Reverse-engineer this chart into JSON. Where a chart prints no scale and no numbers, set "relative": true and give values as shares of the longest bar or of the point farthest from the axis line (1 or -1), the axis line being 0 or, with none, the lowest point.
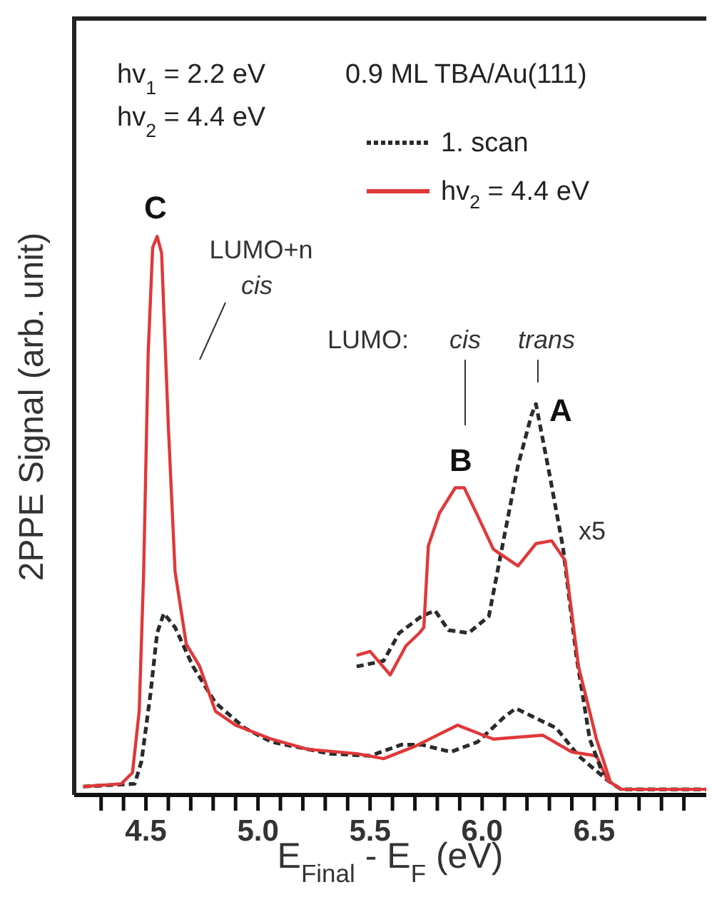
{
  "chart_data": {
    "type": "line",
    "relative": true,
    "xlabel": "E$_{Final}$ - E$_{F}$  (eV)",
    "ylabel": "2PPE Signal (arb. unit)",
    "xlim": [
      4.18,
      7.0
    ],
    "xticks": [
      {
        "value": 4.3,
        "label": null
      },
      {
        "value": 4.4,
        "label": null
      },
      4.5,
      {
        "value": 4.6,
        "label": null
      },
      {
        "value": 4.7,
        "label": null
      },
      {
        "value": 4.8,
        "label": null
      },
      {
        "value": 4.9,
        "label": null
      },
      {
        "value": 5.0,
        "label": "5.0"
      },
      {
        "value": 5.1,
        "label": null
      },
      {
        "value": 5.2,
        "label": null
      },
      {
        "value": 5.3,
        "label": null
      },
      {
        "value": 5.4,
        "label": null
      },
      5.5,
      {
        "value": 5.6,
        "label": null
      },
      {
        "value": 5.7,
        "label": null
      },
      {
        "value": 5.8,
        "label": null
      },
      {
        "value": 5.9,
        "label": null
      },
      {
        "value": 6.0,
        "label": "6.0"
      },
      {
        "value": 6.1,
        "label": null
      },
      {
        "value": 6.2,
        "label": null
      },
      {
        "value": 6.3,
        "label": null
      },
      {
        "value": 6.4,
        "label": null
      },
      6.5,
      {
        "value": 6.6,
        "label": null
      },
      {
        "value": 6.7,
        "label": null
      },
      {
        "value": 6.8,
        "label": null
      },
      {
        "value": 6.9,
        "label": null
      }
    ],
    "legend": "top right",
    "grid": false,
    "series": [
      {
        "name": "1. scan",
        "color": "#2b2b2b",
        "line_style": "dashed",
        "x": [
          4.22,
          4.45,
          4.48,
          4.52,
          4.55,
          4.58,
          4.63,
          4.71,
          4.81,
          4.94,
          5.06,
          5.32,
          5.5,
          5.64,
          5.73,
          5.86,
          5.98,
          6.1,
          6.15,
          6.33,
          6.43,
          6.56,
          6.62,
          7.0
        ],
        "values": [
          0.015,
          0.02,
          0.06,
          0.18,
          0.29,
          0.325,
          0.3,
          0.23,
          0.165,
          0.12,
          0.095,
          0.074,
          0.07,
          0.09,
          0.09,
          0.077,
          0.095,
          0.14,
          0.155,
          0.12,
          0.07,
          0.026,
          0.01,
          0.01
        ]
      },
      {
        "name": "hv$_{2}$ = 4.4 eV",
        "color": "#e0383a",
        "line_style": "solid",
        "x": [
          4.22,
          4.39,
          4.44,
          4.47,
          4.49,
          4.51,
          4.53,
          4.55,
          4.57,
          4.6,
          4.63,
          4.68,
          4.74,
          4.81,
          4.9,
          5.06,
          5.22,
          5.44,
          5.56,
          5.7,
          5.89,
          6.05,
          6.27,
          6.4,
          6.51,
          6.56,
          6.62,
          7.0
        ],
        "values": [
          0.015,
          0.02,
          0.04,
          0.15,
          0.4,
          0.79,
          0.98,
          1.0,
          0.97,
          0.66,
          0.4,
          0.27,
          0.23,
          0.15,
          0.125,
          0.1,
          0.082,
          0.074,
          0.065,
          0.087,
          0.125,
          0.1,
          0.107,
          0.077,
          0.07,
          0.026,
          0.01,
          0.01
        ]
      },
      {
        "color": "#2b2b2b",
        "line_style": "dashed",
        "x": [
          5.44,
          5.56,
          5.63,
          5.73,
          5.79,
          5.85,
          5.94,
          6.03,
          6.09,
          6.16,
          6.22,
          6.24,
          6.3,
          6.36,
          6.42,
          6.48,
          6.54
        ],
        "values": [
          0.23,
          0.24,
          0.29,
          0.32,
          0.33,
          0.295,
          0.29,
          0.32,
          0.445,
          0.59,
          0.68,
          0.7,
          0.575,
          0.445,
          0.25,
          0.1,
          0.036
        ]
      },
      {
        "color": "#e0383a",
        "line_style": "solid",
        "x": [
          5.44,
          5.5,
          5.59,
          5.66,
          5.72,
          5.74,
          5.76,
          5.81,
          5.88,
          5.92,
          5.98,
          6.05,
          6.16,
          6.24,
          6.31,
          6.37,
          6.43,
          6.51,
          6.57
        ],
        "values": [
          0.25,
          0.257,
          0.215,
          0.267,
          0.29,
          0.3,
          0.446,
          0.505,
          0.55,
          0.55,
          0.5,
          0.44,
          0.41,
          0.45,
          0.455,
          0.42,
          0.23,
          0.1,
          0.026
        ]
      }
    ],
    "annotations": [
      "hv$_{1}$ = 2.2 eV",
      "hv$_{2}$ = 4.4 eV",
      "0.9 ML   TBA/Au(111)",
      "C",
      "LUMO+n",
      "cis",
      "LUMO:",
      "cis",
      "trans",
      "B",
      "A",
      "x5"
    ]
  }
}
